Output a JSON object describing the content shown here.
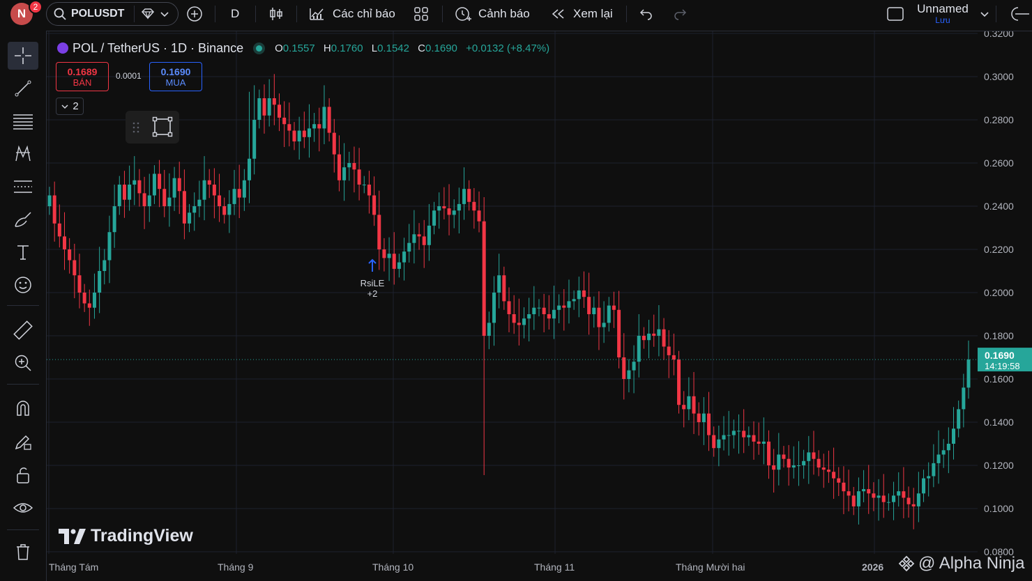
{
  "topbar": {
    "avatar_letter": "N",
    "notification_count": "2",
    "symbol": "POLUSDT",
    "interval": "D",
    "indicators_label": "Các chỉ báo",
    "alerts_label": "Cảnh báo",
    "replay_label": "Xem lại",
    "layout_name": "Unnamed",
    "save_label": "Lưu"
  },
  "legend": {
    "title": "POL / TetherUS · 1D · Binance",
    "o_label": "O",
    "o": "0.1557",
    "h_label": "H",
    "h": "0.1760",
    "l_label": "L",
    "l": "0.1542",
    "c_label": "C",
    "c": "0.1690",
    "change": "+0.0132 (+8.47%)"
  },
  "trade": {
    "sell_price": "0.1689",
    "sell_label": "BÁN",
    "spread": "0.0001",
    "buy_price": "0.1690",
    "buy_label": "MUA",
    "collapse_count": "2"
  },
  "annotation": {
    "label": "RsiLE",
    "extra": "+2"
  },
  "watermark": {
    "brand": "TradingView",
    "credit": "@ Alpha Ninja"
  },
  "last_price": {
    "price": "0.1690",
    "countdown": "14:19:58"
  },
  "colors": {
    "up": "#26a69a",
    "down": "#f23645",
    "background": "#0f0f0f",
    "accent": "#2962ff"
  },
  "chart_data": {
    "type": "candlestick",
    "title": "POL / TetherUS · 1D · Binance",
    "ylim": [
      0.08,
      0.32
    ],
    "yticks": [
      "0.0800",
      "0.1000",
      "0.1200",
      "0.1400",
      "0.1600",
      "0.1800",
      "0.2000",
      "0.2200",
      "0.2400",
      "0.2600",
      "0.2800",
      "0.3000",
      "0.3200"
    ],
    "xticks": [
      "Tháng Tám",
      "Tháng 9",
      "Tháng 10",
      "Tháng 11",
      "Tháng Mười hai",
      "2026"
    ],
    "grid": true,
    "close": [
      0.245,
      0.232,
      0.226,
      0.22,
      0.215,
      0.208,
      0.2,
      0.195,
      0.193,
      0.2,
      0.21,
      0.215,
      0.228,
      0.24,
      0.25,
      0.243,
      0.25,
      0.252,
      0.246,
      0.24,
      0.245,
      0.255,
      0.248,
      0.24,
      0.244,
      0.253,
      0.247,
      0.232,
      0.237,
      0.24,
      0.243,
      0.252,
      0.25,
      0.245,
      0.24,
      0.236,
      0.241,
      0.248,
      0.244,
      0.252,
      0.262,
      0.28,
      0.29,
      0.282,
      0.29,
      0.287,
      0.281,
      0.278,
      0.275,
      0.27,
      0.275,
      0.272,
      0.276,
      0.278,
      0.276,
      0.286,
      0.274,
      0.264,
      0.252,
      0.258,
      0.26,
      0.257,
      0.25,
      0.25,
      0.245,
      0.236,
      0.22,
      0.216,
      0.218,
      0.211,
      0.214,
      0.219,
      0.223,
      0.227,
      0.226,
      0.222,
      0.231,
      0.238,
      0.24,
      0.239,
      0.236,
      0.238,
      0.241,
      0.248,
      0.242,
      0.238,
      0.233,
      0.18,
      0.186,
      0.2,
      0.208,
      0.196,
      0.19,
      0.186,
      0.185,
      0.188,
      0.19,
      0.193,
      0.193,
      0.19,
      0.188,
      0.192,
      0.194,
      0.193,
      0.196,
      0.197,
      0.201,
      0.198,
      0.19,
      0.193,
      0.184,
      0.186,
      0.194,
      0.192,
      0.17,
      0.16,
      0.164,
      0.168,
      0.18,
      0.178,
      0.181,
      0.18,
      0.183,
      0.175,
      0.171,
      0.169,
      0.148,
      0.146,
      0.152,
      0.144,
      0.14,
      0.144,
      0.134,
      0.128,
      0.132,
      0.134,
      0.134,
      0.136,
      0.136,
      0.133,
      0.134,
      0.131,
      0.13,
      0.131,
      0.12,
      0.118,
      0.125,
      0.123,
      0.119,
      0.12,
      0.12,
      0.122,
      0.126,
      0.123,
      0.119,
      0.118,
      0.117,
      0.114,
      0.112,
      0.108,
      0.106,
      0.101,
      0.108,
      0.109,
      0.107,
      0.105,
      0.106,
      0.103,
      0.103,
      0.106,
      0.108,
      0.105,
      0.102,
      0.101,
      0.107,
      0.114,
      0.115,
      0.121,
      0.125,
      0.127,
      0.13,
      0.137,
      0.146,
      0.156,
      0.169
    ]
  }
}
